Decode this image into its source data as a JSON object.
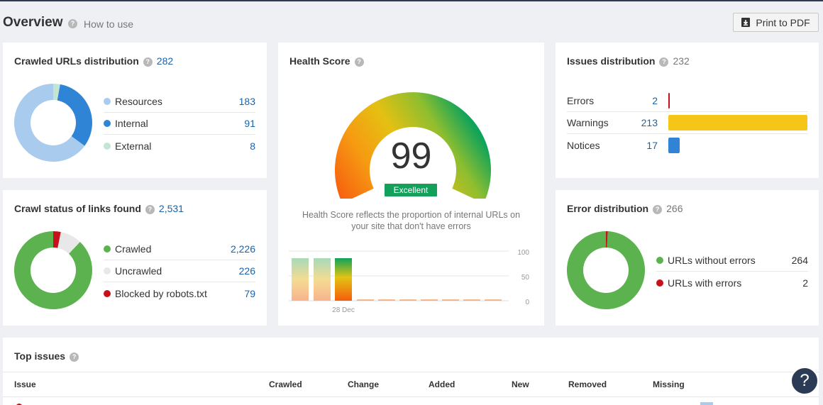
{
  "header": {
    "title": "Overview",
    "how_to_use": "How to use",
    "print_label": "Print to PDF"
  },
  "crawled_urls": {
    "title": "Crawled URLs distribution",
    "total": "282",
    "items": [
      {
        "label": "Resources",
        "value": "183",
        "color": "#a9cbee"
      },
      {
        "label": "Internal",
        "value": "91",
        "color": "#2f84d6"
      },
      {
        "label": "External",
        "value": "8",
        "color": "#c3e6d4"
      }
    ]
  },
  "crawl_status": {
    "title": "Crawl status of links found",
    "total": "2,531",
    "items": [
      {
        "label": "Crawled",
        "value": "2,226",
        "color": "#5cb24f"
      },
      {
        "label": "Uncrawled",
        "value": "226",
        "color": "#e8e8e8"
      },
      {
        "label": "Blocked by robots.txt",
        "value": "79",
        "color": "#c8101c"
      }
    ]
  },
  "health": {
    "title": "Health Score",
    "score": "99",
    "badge": "Excellent",
    "description_line1": "Health Score reflects the proportion of internal URLs on",
    "description_line2": "your site that don't have errors",
    "axis_labels": [
      "100",
      "50",
      "0"
    ],
    "date_label": "28 Dec"
  },
  "issues": {
    "title": "Issues distribution",
    "total": "232",
    "items": [
      {
        "label": "Errors",
        "value": 2,
        "color": "#c8101c"
      },
      {
        "label": "Warnings",
        "value": 213,
        "color": "#f5c518"
      },
      {
        "label": "Notices",
        "value": 17,
        "color": "#2f84d6"
      }
    ]
  },
  "error_distribution": {
    "title": "Error distribution",
    "total": "266",
    "items": [
      {
        "label": "URLs without errors",
        "value": "264",
        "color": "#5cb24f"
      },
      {
        "label": "URLs with errors",
        "value": "2",
        "color": "#c8101c"
      }
    ]
  },
  "top_issues": {
    "title": "Top issues",
    "columns": [
      "Issue",
      "Crawled",
      "Change",
      "Added",
      "New",
      "Removed",
      "Missing"
    ]
  },
  "help_fab": "?"
}
